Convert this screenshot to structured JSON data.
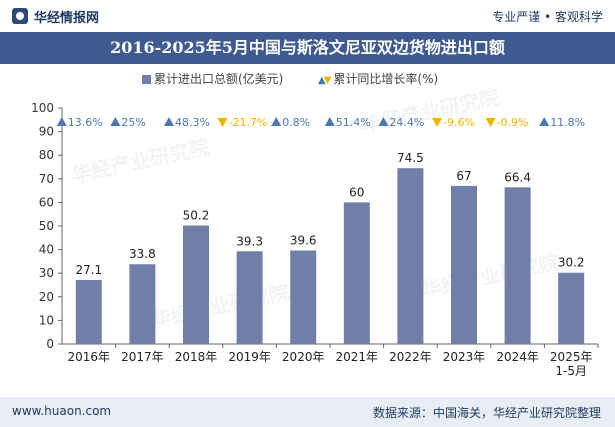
{
  "header": {
    "brand": "华经情报网",
    "slogan": "专业严谨 • 客观科学"
  },
  "footer": {
    "url": "www.huaon.com",
    "source": "数据来源：中国海关，华经产业研究院整理"
  },
  "watermark": "华经产业研究院",
  "colors": {
    "bar": "#6f7fa8",
    "title_band": "#3e5a8f",
    "up": "#4a78b0",
    "down": "#f0b400"
  },
  "chart_data": {
    "type": "bar",
    "title": "2016-2025年5月中国与斯洛文尼亚双边货物进出口额",
    "legend": {
      "series_label": "累计进出口总额(亿美元)",
      "growth_label": "累计同比增长率(%)"
    },
    "categories": [
      "2016年",
      "2017年",
      "2018年",
      "2019年",
      "2020年",
      "2021年",
      "2022年",
      "2023年",
      "2024年",
      "2025年\n1-5月"
    ],
    "series": [
      {
        "name": "累计进出口总额(亿美元)",
        "values": [
          27.1,
          33.8,
          50.2,
          39.3,
          39.6,
          60,
          74.5,
          67,
          66.4,
          30.2
        ]
      }
    ],
    "growth": [
      "13.6%",
      "25%",
      "48.3%",
      "-21.7%",
      "0.8%",
      "51.4%",
      "24.4%",
      "-9.6%",
      "-0.9%",
      "11.8%"
    ],
    "growth_direction": [
      "up",
      "up",
      "up",
      "down",
      "up",
      "up",
      "up",
      "down",
      "down",
      "up"
    ],
    "ylim": [
      0,
      100
    ],
    "yticks": [
      0,
      10,
      20,
      30,
      40,
      50,
      60,
      70,
      80,
      90,
      100
    ],
    "xlabel": "",
    "ylabel": ""
  }
}
